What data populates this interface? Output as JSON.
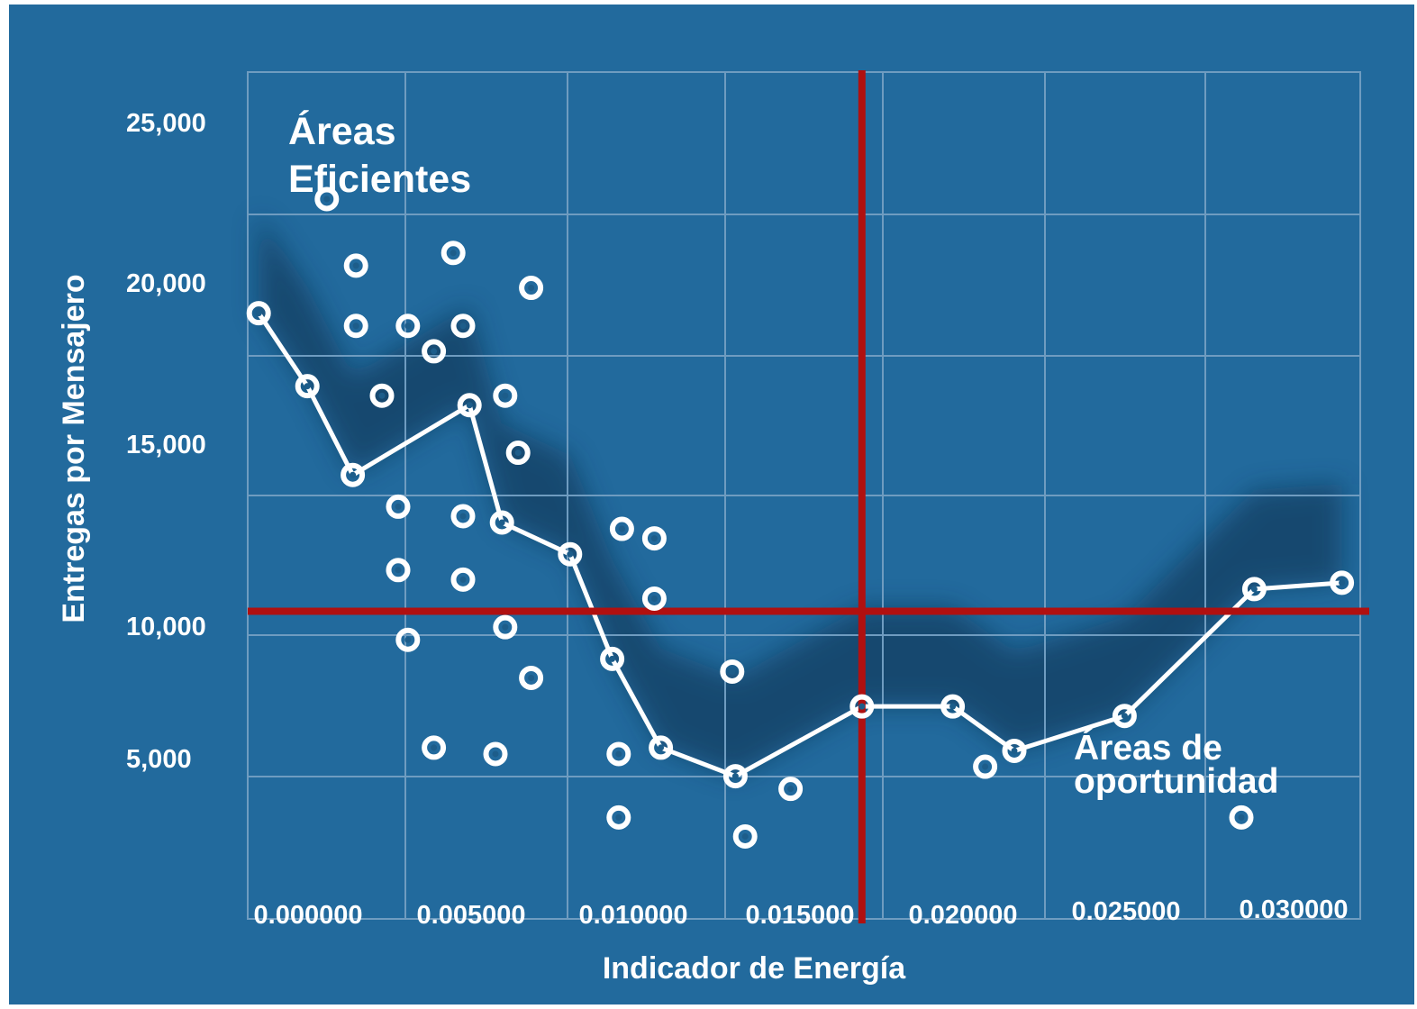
{
  "chart_data": {
    "type": "scatter",
    "title": "",
    "xlabel": "Indicador de Energía",
    "ylabel": "Entregas por Mensajero",
    "xlim": [
      0.0,
      0.0335
    ],
    "ylim": [
      0,
      27000
    ],
    "x_tick_labels": [
      "0.000000",
      "0.005000",
      "0.010000",
      "0.015000",
      "0.020000",
      "0.025000",
      "0.030000"
    ],
    "y_tick_labels": [
      "5,000",
      "10,000",
      "15,000",
      "20,000",
      "25,000"
    ],
    "grid": true,
    "annotations": [
      {
        "lines": [
          "Áreas",
          "Eficientes"
        ]
      },
      {
        "lines": [
          "Áreas de",
          "oportunidad"
        ]
      }
    ],
    "reference_lines": {
      "x": 0.0188,
      "y": 9700
    },
    "line_series": [
      [
        0.0002,
        19100
      ],
      [
        0.0017,
        16800
      ],
      [
        0.0031,
        14000
      ],
      [
        0.0067,
        16200
      ],
      [
        0.0077,
        12500
      ],
      [
        0.0098,
        11500
      ],
      [
        0.0111,
        8200
      ],
      [
        0.0126,
        5400
      ],
      [
        0.0149,
        4500
      ],
      [
        0.0188,
        6700
      ],
      [
        0.0216,
        6700
      ],
      [
        0.0235,
        5300
      ],
      [
        0.0269,
        6400
      ],
      [
        0.0309,
        10400
      ],
      [
        0.0336,
        10600
      ]
    ],
    "scatter_points": [
      [
        0.0023,
        22700
      ],
      [
        0.0032,
        20600
      ],
      [
        0.0032,
        18700
      ],
      [
        0.004,
        16500
      ],
      [
        0.0045,
        13000
      ],
      [
        0.0045,
        11000
      ],
      [
        0.0048,
        8800
      ],
      [
        0.0048,
        18700
      ],
      [
        0.0056,
        17900
      ],
      [
        0.0056,
        5400
      ],
      [
        0.0062,
        21000
      ],
      [
        0.0065,
        18700
      ],
      [
        0.0065,
        12700
      ],
      [
        0.0065,
        10700
      ],
      [
        0.0075,
        5200
      ],
      [
        0.0078,
        16500
      ],
      [
        0.0078,
        9200
      ],
      [
        0.0082,
        14700
      ],
      [
        0.0086,
        7600
      ],
      [
        0.0086,
        19900
      ],
      [
        0.0114,
        12300
      ],
      [
        0.0113,
        5200
      ],
      [
        0.0113,
        3200
      ],
      [
        0.0124,
        12000
      ],
      [
        0.0124,
        10100
      ],
      [
        0.0148,
        7800
      ],
      [
        0.0152,
        2600
      ],
      [
        0.0166,
        4100
      ],
      [
        0.0226,
        4800
      ],
      [
        0.0305,
        3200
      ]
    ],
    "colors": {
      "background": "#226a9d",
      "grid": "#6f9cc0",
      "line": "#ffffff",
      "reference": "#b01010",
      "marker": "#ffffff"
    }
  }
}
